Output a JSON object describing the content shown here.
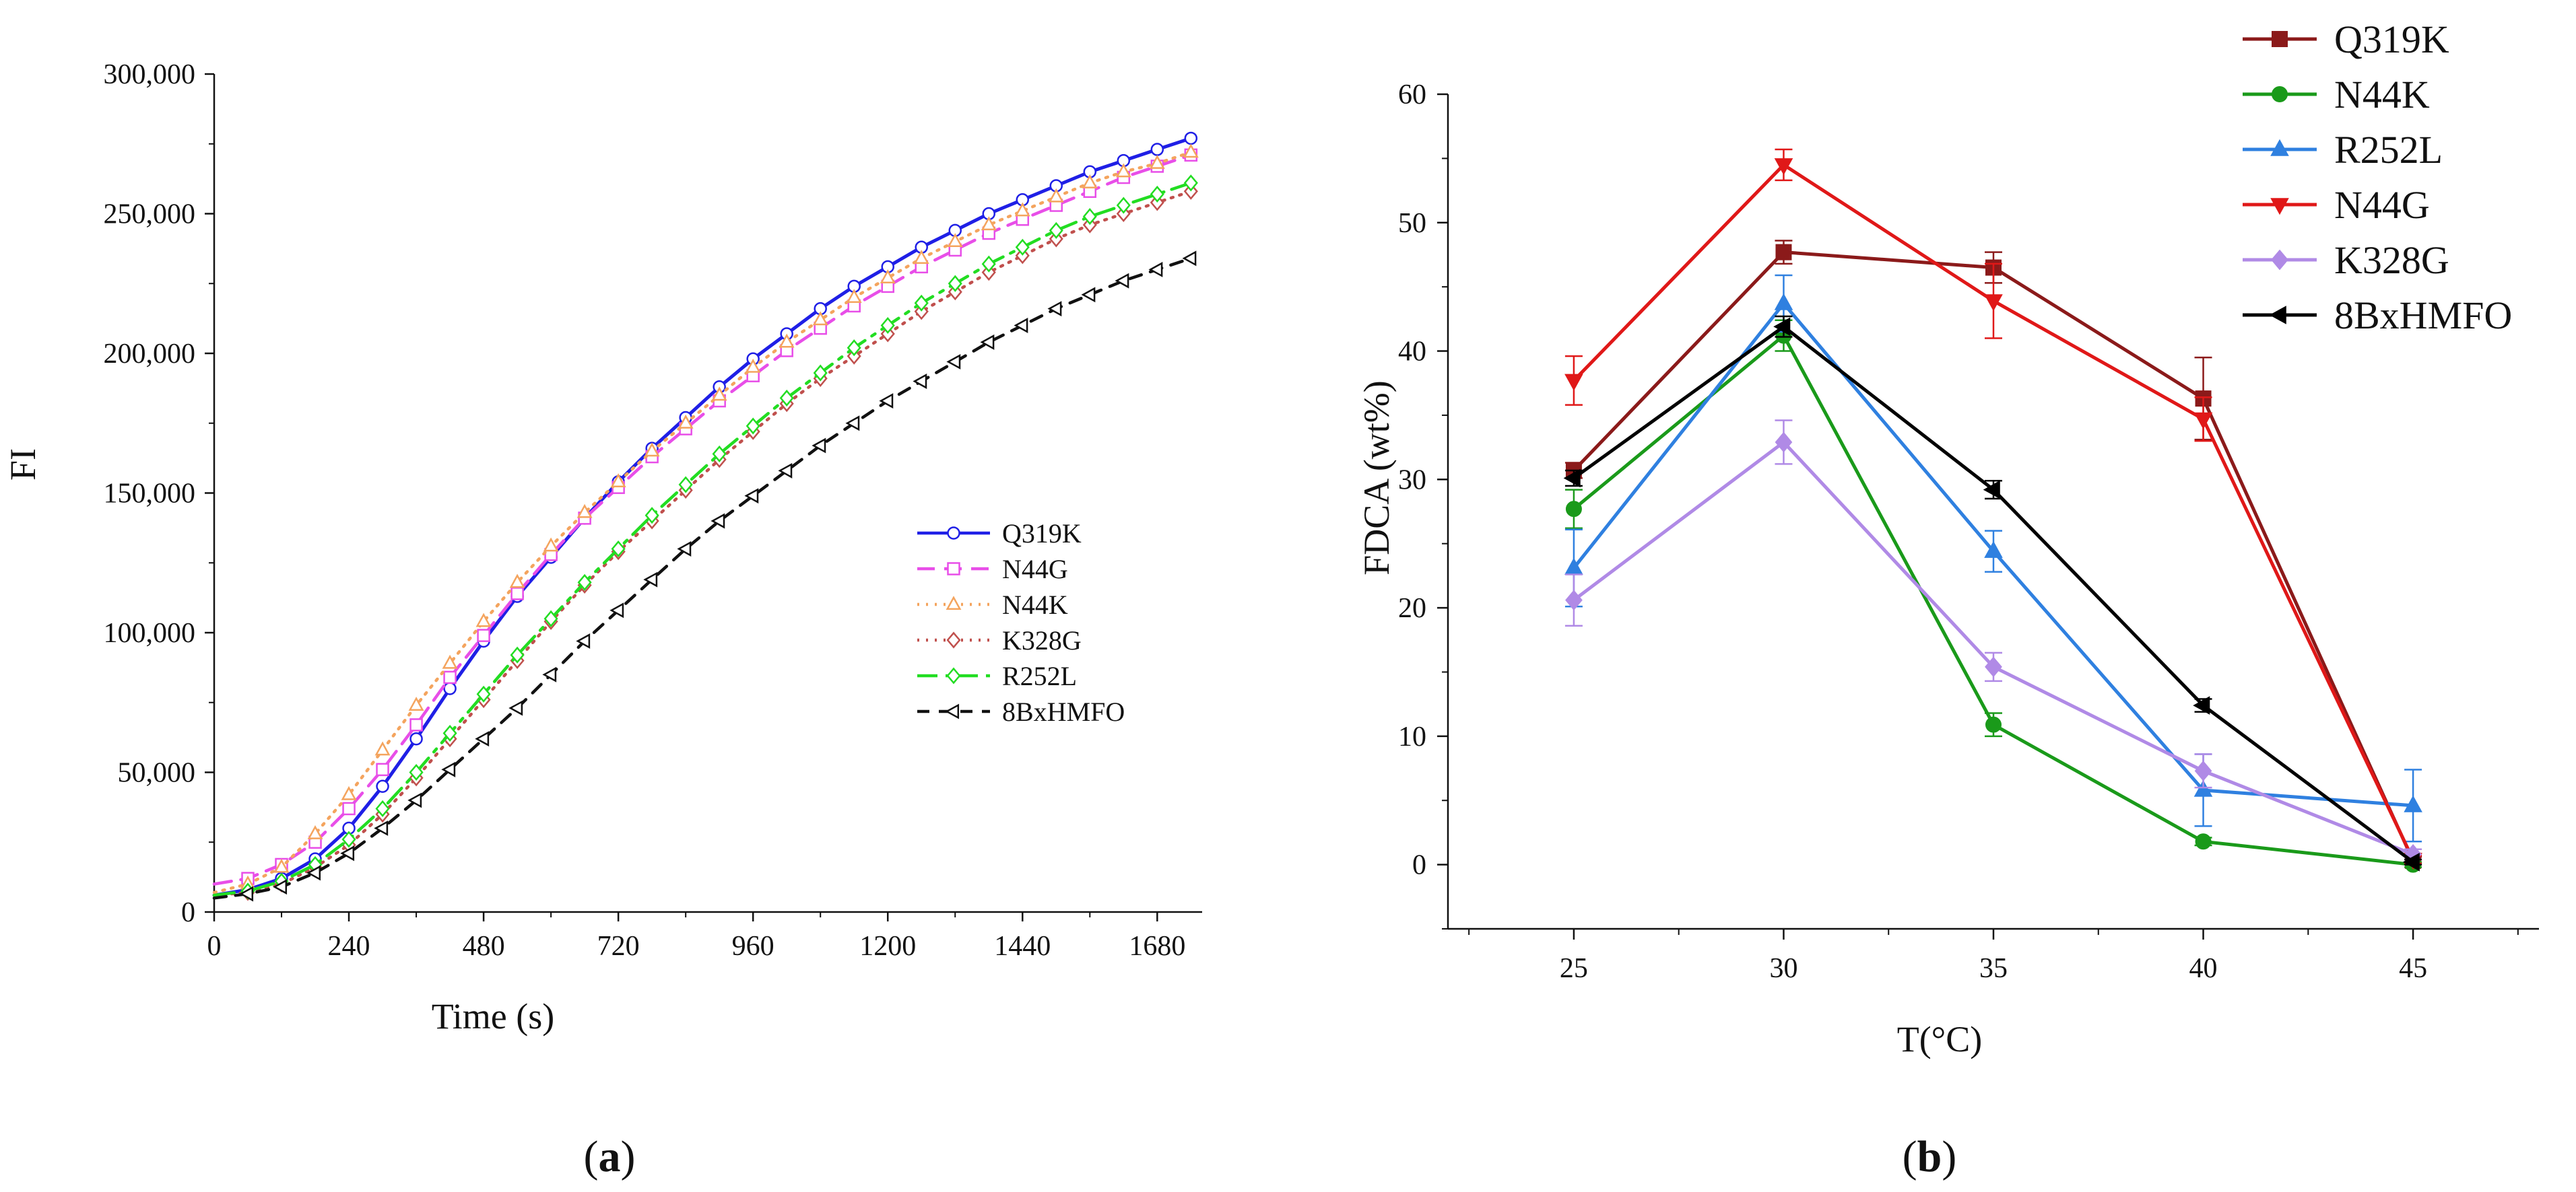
{
  "chart_data": [
    {
      "type": "line",
      "panel_label": "(a)",
      "panel_letter": "a",
      "title": "",
      "xlabel": "Time (s)",
      "ylabel": "FI",
      "xlim": [
        0,
        1760
      ],
      "ylim": [
        0,
        300000
      ],
      "xticks": [
        0,
        240,
        480,
        720,
        960,
        1200,
        1440,
        1680
      ],
      "yticks": [
        0,
        50000,
        100000,
        150000,
        200000,
        250000,
        300000
      ],
      "ytick_labels": [
        "0",
        "50,000",
        "100,000",
        "150,000",
        "200,000",
        "250,000",
        "300,000"
      ],
      "grid": false,
      "legend_position": "center-right",
      "x": [
        0,
        60,
        120,
        180,
        240,
        300,
        360,
        420,
        480,
        540,
        600,
        660,
        720,
        780,
        840,
        900,
        960,
        1020,
        1080,
        1140,
        1200,
        1260,
        1320,
        1380,
        1440,
        1500,
        1560,
        1620,
        1680,
        1740
      ],
      "series": [
        {
          "name": "Q319K",
          "color": "#1f1fe6",
          "dash": "",
          "marker": "circle",
          "values": [
            6000,
            8000,
            12000,
            19000,
            30000,
            45000,
            62000,
            80000,
            97000,
            113000,
            127000,
            141000,
            154000,
            166000,
            177000,
            188000,
            198000,
            207000,
            216000,
            224000,
            231000,
            238000,
            244000,
            250000,
            255000,
            260000,
            265000,
            269000,
            273000,
            277000
          ]
        },
        {
          "name": "N44G",
          "color": "#e84ee8",
          "dash": "26 14",
          "marker": "square",
          "values": [
            10000,
            12000,
            17000,
            25000,
            37000,
            51000,
            67000,
            84000,
            99000,
            114000,
            128000,
            141000,
            152000,
            163000,
            173000,
            183000,
            192000,
            201000,
            209000,
            217000,
            224000,
            231000,
            237000,
            243000,
            248000,
            253000,
            258000,
            263000,
            267000,
            271000
          ]
        },
        {
          "name": "N44K",
          "color": "#f4a45e",
          "dash": "3 10",
          "marker": "triangle",
          "values": [
            7000,
            10000,
            16000,
            28000,
            42000,
            58000,
            74000,
            89000,
            104000,
            118000,
            131000,
            143000,
            154000,
            165000,
            175000,
            185000,
            195000,
            204000,
            212000,
            220000,
            227000,
            234000,
            240000,
            246000,
            251000,
            256000,
            261000,
            265000,
            268000,
            272000
          ]
        },
        {
          "name": "K328G",
          "color": "#c0504d",
          "dash": "3 10",
          "marker": "diamond",
          "values": [
            6000,
            7000,
            10000,
            16000,
            24000,
            35000,
            48000,
            62000,
            76000,
            90000,
            104000,
            117000,
            129000,
            140000,
            151000,
            162000,
            172000,
            182000,
            191000,
            199000,
            207000,
            215000,
            222000,
            229000,
            235000,
            241000,
            246000,
            250000,
            254000,
            258000
          ]
        },
        {
          "name": "R252L",
          "color": "#22dd22",
          "dash": "30 12 6 12",
          "marker": "diamond",
          "values": [
            6000,
            7500,
            11000,
            17000,
            26000,
            37000,
            50000,
            64000,
            78000,
            92000,
            105000,
            118000,
            130000,
            142000,
            153000,
            164000,
            174000,
            184000,
            193000,
            202000,
            210000,
            218000,
            225000,
            232000,
            238000,
            244000,
            249000,
            253000,
            257000,
            261000
          ]
        },
        {
          "name": "8BxHMFO",
          "color": "#111111",
          "dash": "18 14",
          "marker": "triangle-left",
          "values": [
            5000,
            6500,
            9000,
            14000,
            21000,
            30000,
            40000,
            51000,
            62000,
            73000,
            85000,
            97000,
            108000,
            119000,
            130000,
            140000,
            149000,
            158000,
            167000,
            175000,
            183000,
            190000,
            197000,
            204000,
            210000,
            216000,
            221000,
            226000,
            230000,
            234000
          ]
        }
      ]
    },
    {
      "type": "line",
      "panel_label": "(b)",
      "panel_letter": "b",
      "title": "",
      "xlabel": "T(°C)",
      "ylabel": "FDCA (wt%)",
      "categories": [
        "25",
        "30",
        "35",
        "40",
        "45"
      ],
      "x": [
        25,
        30,
        35,
        40,
        45
      ],
      "xlim": [
        22,
        48
      ],
      "ylim": [
        -5,
        60
      ],
      "yticks": [
        0,
        10,
        20,
        30,
        40,
        50,
        60
      ],
      "grid": false,
      "legend_position": "top-right",
      "series": [
        {
          "name": "Q319K",
          "color": "#8b1a1a",
          "marker": "square",
          "values": [
            30.7,
            47.7,
            46.5,
            36.3,
            0.3
          ],
          "errors": [
            0.6,
            0.9,
            1.2,
            3.2,
            0.3
          ]
        },
        {
          "name": "N44K",
          "color": "#1a9a1a",
          "marker": "circle",
          "values": [
            27.7,
            41.2,
            10.9,
            1.8,
            0
          ],
          "errors": [
            1.5,
            1.2,
            0.9,
            0.3,
            0.2
          ]
        },
        {
          "name": "R252L",
          "color": "#2f80e0",
          "marker": "triangle",
          "values": [
            23.1,
            43.7,
            24.4,
            5.8,
            4.6
          ],
          "errors": [
            3.0,
            2.2,
            1.6,
            2.8,
            2.8
          ]
        },
        {
          "name": "N44G",
          "color": "#e01818",
          "marker": "triangle-down",
          "values": [
            37.7,
            54.5,
            43.9,
            34.7,
            0.4
          ],
          "errors": [
            1.9,
            1.2,
            2.9,
            1.7,
            0.3
          ]
        },
        {
          "name": "K328G",
          "color": "#b08ae6",
          "marker": "diamond",
          "values": [
            20.6,
            32.9,
            15.4,
            7.3,
            0.8
          ],
          "errors": [
            2.0,
            1.7,
            1.1,
            1.3,
            0.4
          ]
        },
        {
          "name": "8BxHMFO",
          "color": "#000000",
          "marker": "triangle-left",
          "values": [
            30.1,
            41.9,
            29.2,
            12.4,
            0.2
          ],
          "errors": [
            0.6,
            0.8,
            0.7,
            0.5,
            0.2
          ]
        }
      ]
    }
  ]
}
